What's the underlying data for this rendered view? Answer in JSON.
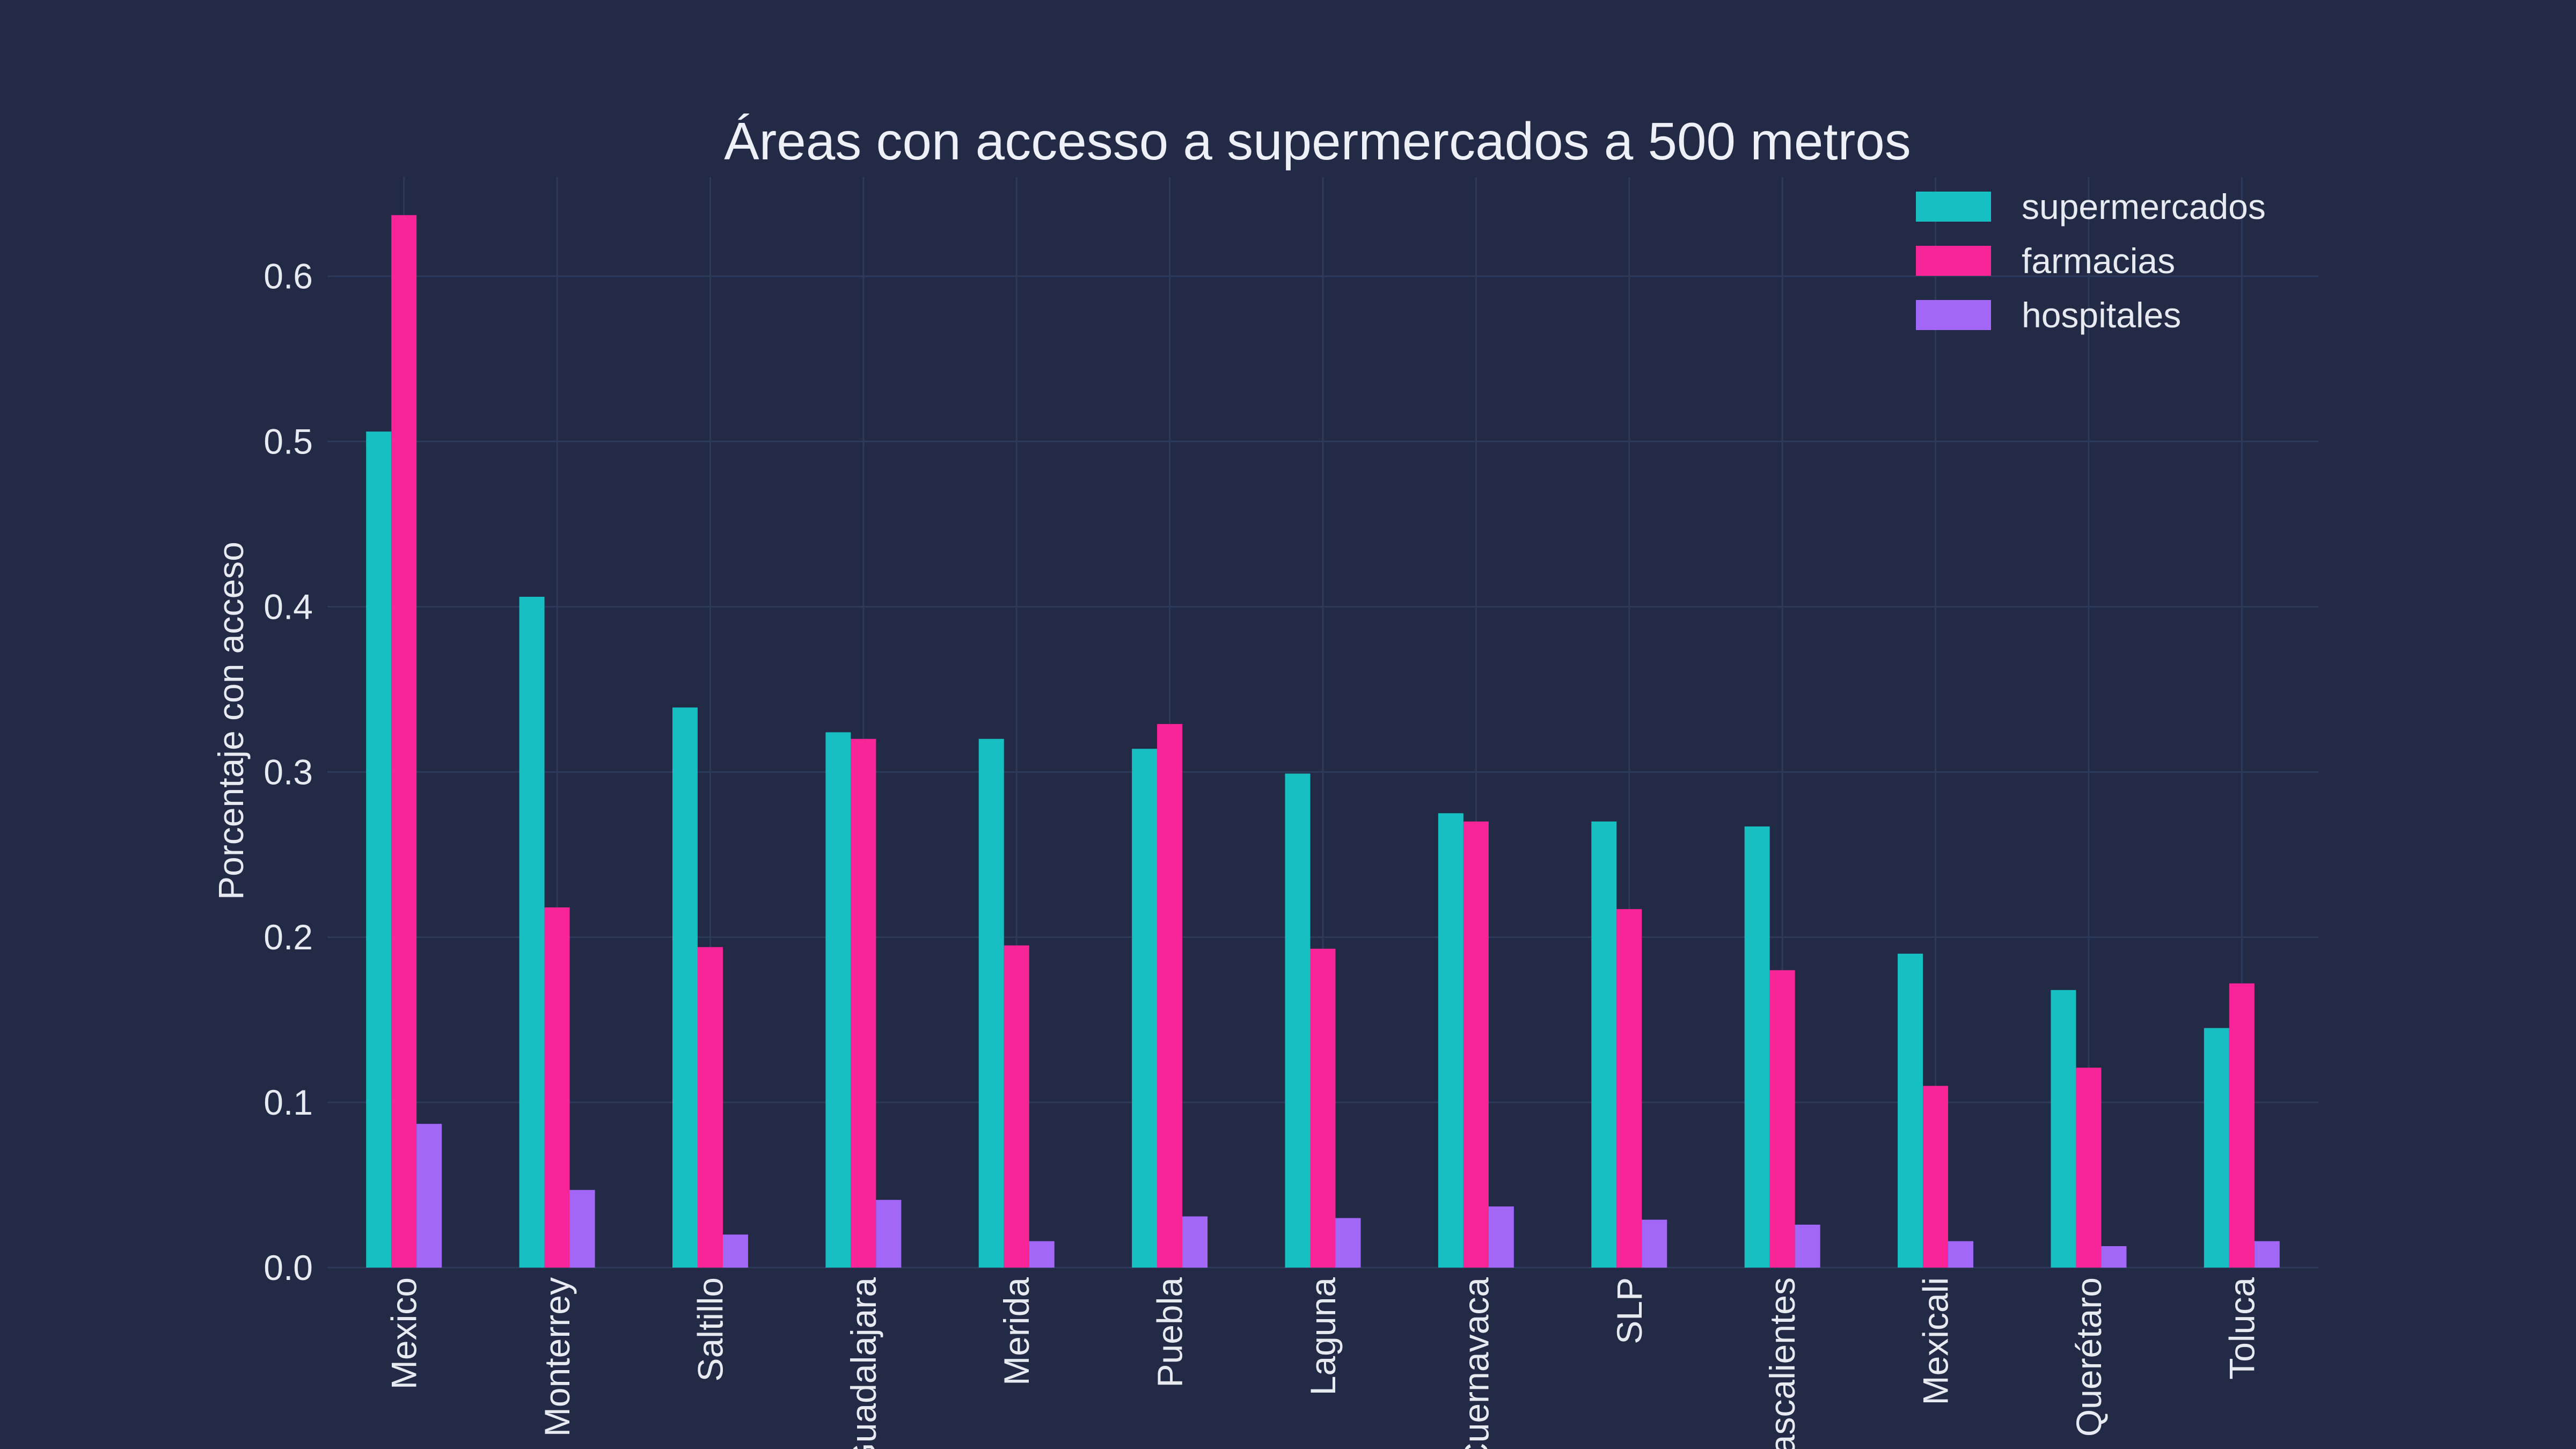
{
  "chart_data": {
    "type": "bar",
    "title": "Áreas con accesso a supermercados a 500 metros",
    "xlabel": "",
    "ylabel": "Porcentaje con acceso",
    "ylim": [
      0,
      0.66
    ],
    "yticks": [
      0.0,
      0.1,
      0.2,
      0.3,
      0.4,
      0.5,
      0.6
    ],
    "ytick_labels": [
      "0.0",
      "0.1",
      "0.2",
      "0.3",
      "0.4",
      "0.5",
      "0.6"
    ],
    "grid": true,
    "legend_position": "top-right",
    "categories": [
      "Mexico",
      "Monterrey",
      "Saltillo",
      "Guadalajara",
      "Merida",
      "Puebla",
      "Laguna",
      "Cuernavaca",
      "SLP",
      "Aguascalientes",
      "Mexicali",
      "Querétaro",
      "Toluca"
    ],
    "series": [
      {
        "name": "supermercados",
        "color": "#17bec2",
        "values": [
          0.506,
          0.406,
          0.339,
          0.324,
          0.32,
          0.314,
          0.299,
          0.275,
          0.27,
          0.267,
          0.19,
          0.168,
          0.145
        ]
      },
      {
        "name": "farmacias",
        "color": "#f72597",
        "values": [
          0.637,
          0.218,
          0.194,
          0.32,
          0.195,
          0.329,
          0.193,
          0.27,
          0.217,
          0.18,
          0.11,
          0.121,
          0.172
        ]
      },
      {
        "name": "hospitales",
        "color": "#a367f8",
        "values": [
          0.087,
          0.047,
          0.02,
          0.041,
          0.016,
          0.031,
          0.03,
          0.037,
          0.029,
          0.026,
          0.016,
          0.013,
          0.016
        ]
      }
    ]
  }
}
